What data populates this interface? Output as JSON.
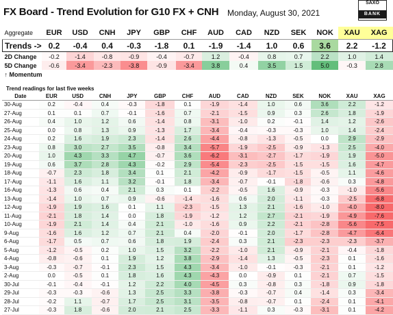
{
  "title": "FX Board - Trend Evolution for G10 FX + CNH",
  "date": "Monday, August 30, 2021",
  "logo": {
    "top": "SAXO",
    "bottom": "BANK"
  },
  "colors": {
    "up_strong": "#63be7b",
    "down_strong": "#f8696b",
    "highlight": "#ffff99",
    "neutral": "#ffffff"
  },
  "currencies": [
    "EUR",
    "USD",
    "CNH",
    "JPY",
    "GBP",
    "CHF",
    "AUD",
    "CAD",
    "NZD",
    "SEK",
    "NOK",
    "XAU",
    "XAG"
  ],
  "summary": {
    "aggregate_label": "Aggregate",
    "trends_label": "Trends ->",
    "trends": [
      "0.2",
      "-0.4",
      "0.4",
      "-0.3",
      "-1.8",
      "0.1",
      "-1.9",
      "-1.4",
      "1.0",
      "0.6",
      "3.6",
      "2.2",
      "-1.2"
    ],
    "change_2d_label": "2D Change",
    "change_2d": [
      "-0.2",
      "-1.4",
      "-0.8",
      "-0.9",
      "-0.4",
      "-0.7",
      "1.2",
      "-0.4",
      "0.8",
      "0.7",
      "2.2",
      "1.0",
      "1.4"
    ],
    "change_5d_label": "5D Change",
    "change_5d": [
      "-0.6",
      "-3.4",
      "-2.3",
      "-3.8",
      "-0.9",
      "-3.4",
      "3.8",
      "0.4",
      "3.5",
      "1.5",
      "5.0",
      "-0.3",
      "2.8"
    ],
    "momentum_label": "↑ Momentum"
  },
  "detail": {
    "section_title": "Trend readings for last five weeks",
    "date_label": "Date",
    "rows": [
      {
        "date": "30-Aug",
        "values": [
          "0.2",
          "-0.4",
          "0.4",
          "-0.3",
          "-1.8",
          "0.1",
          "-1.9",
          "-1.4",
          "1.0",
          "0.6",
          "3.6",
          "2.2",
          "-1.2"
        ]
      },
      {
        "date": "27-Aug",
        "values": [
          "0.1",
          "0.1",
          "0.7",
          "-0.1",
          "-1.6",
          "0.7",
          "-2.1",
          "-1.5",
          "0.9",
          "0.3",
          "2.6",
          "1.8",
          "-1.9"
        ]
      },
      {
        "date": "26-Aug",
        "values": [
          "0.4",
          "1.0",
          "1.2",
          "0.6",
          "-1.4",
          "0.8",
          "-3.1",
          "-1.0",
          "0.2",
          "-0.1",
          "1.4",
          "1.2",
          "-2.6"
        ]
      },
      {
        "date": "25-Aug",
        "values": [
          "0.0",
          "0.8",
          "1.3",
          "0.9",
          "-1.3",
          "1.7",
          "-3.4",
          "-0.4",
          "-0.3",
          "-0.3",
          "1.0",
          "1.4",
          "-2.4"
        ]
      },
      {
        "date": "24-Aug",
        "values": [
          "0.2",
          "1.6",
          "1.9",
          "2.3",
          "-1.4",
          "2.6",
          "-4.4",
          "-0.8",
          "-1.3",
          "-0.5",
          "0.0",
          "2.9",
          "-2.9"
        ]
      },
      {
        "date": "23-Aug",
        "values": [
          "0.8",
          "3.0",
          "2.7",
          "3.5",
          "-0.8",
          "3.4",
          "-5.7",
          "-1.9",
          "-2.5",
          "-0.9",
          "-1.3",
          "2.5",
          "-4.0"
        ]
      },
      {
        "date": "20-Aug",
        "values": [
          "1.0",
          "4.3",
          "3.3",
          "4.7",
          "-0.7",
          "3.6",
          "-6.2",
          "-3.1",
          "-2.7",
          "-1.7",
          "-1.9",
          "1.9",
          "-5.0"
        ]
      },
      {
        "date": "19-Aug",
        "values": [
          "0.6",
          "3.7",
          "2.8",
          "4.3",
          "-0.2",
          "2.9",
          "-5.4",
          "-2.3",
          "-2.5",
          "-1.5",
          "-1.5",
          "1.6",
          "-4.7"
        ]
      },
      {
        "date": "18-Aug",
        "values": [
          "-0.7",
          "2.3",
          "1.8",
          "3.4",
          "0.1",
          "2.1",
          "-4.2",
          "-0.9",
          "-1.7",
          "-1.5",
          "-0.5",
          "1.1",
          "-4.6"
        ]
      },
      {
        "date": "17-Aug",
        "values": [
          "-1.1",
          "1.6",
          "1.1",
          "3.2",
          "-0.1",
          "1.8",
          "-3.4",
          "-0.7",
          "-0.1",
          "-1.8",
          "-0.6",
          "0.3",
          "-4.8"
        ]
      },
      {
        "date": "16-Aug",
        "values": [
          "-1.3",
          "0.6",
          "0.4",
          "2.1",
          "0.3",
          "0.1",
          "-2.2",
          "-0.5",
          "1.6",
          "-0.9",
          "-0.3",
          "-1.0",
          "-5.6"
        ]
      },
      {
        "date": "13-Aug",
        "values": [
          "-1.4",
          "1.0",
          "0.7",
          "0.9",
          "-0.6",
          "-1.4",
          "-1.6",
          "0.6",
          "2.0",
          "-1.1",
          "-0.3",
          "-2.5",
          "-6.8"
        ]
      },
      {
        "date": "12-Aug",
        "values": [
          "-1.9",
          "1.9",
          "1.6",
          "0.1",
          "1.1",
          "-2.3",
          "-1.5",
          "1.3",
          "2.1",
          "-1.6",
          "-1.0",
          "-4.0",
          "-8.0"
        ]
      },
      {
        "date": "11-Aug",
        "values": [
          "-2.1",
          "1.8",
          "1.4",
          "0.0",
          "1.8",
          "-1.9",
          "-1.2",
          "1.2",
          "2.7",
          "-2.1",
          "-1.9",
          "-4.9",
          "-7.6"
        ]
      },
      {
        "date": "10-Aug",
        "values": [
          "-1.9",
          "2.1",
          "1.4",
          "0.4",
          "2.1",
          "-1.0",
          "-1.6",
          "0.9",
          "2.2",
          "-2.1",
          "-2.8",
          "-5.6",
          "-7.5"
        ]
      },
      {
        "date": "9-Aug",
        "values": [
          "-1.6",
          "1.6",
          "1.2",
          "0.7",
          "2.1",
          "0.4",
          "-2.0",
          "-0.1",
          "2.0",
          "-1.7",
          "-2.8",
          "-4.7",
          "-6.4"
        ]
      },
      {
        "date": "6-Aug",
        "values": [
          "-1.7",
          "0.5",
          "0.7",
          "0.6",
          "1.8",
          "1.9",
          "-2.4",
          "0.3",
          "2.1",
          "-2.3",
          "-2.3",
          "-2.3",
          "-3.7"
        ]
      },
      {
        "date": "5-Aug",
        "values": [
          "-1.2",
          "-0.5",
          "0.2",
          "1.0",
          "1.5",
          "3.2",
          "-2.2",
          "-1.0",
          "2.1",
          "-0.9",
          "-2.1",
          "-0.4",
          "-1.8"
        ]
      },
      {
        "date": "4-Aug",
        "values": [
          "-0.8",
          "-0.6",
          "0.1",
          "1.9",
          "1.2",
          "3.8",
          "-2.9",
          "-1.4",
          "1.3",
          "-0.5",
          "-2.3",
          "0.1",
          "-1.6"
        ]
      },
      {
        "date": "3-Aug",
        "values": [
          "-0.3",
          "-0.7",
          "-0.1",
          "2.3",
          "1.5",
          "4.3",
          "-3.4",
          "-1.0",
          "-0.1",
          "-0.3",
          "-2.1",
          "0.1",
          "-1.2"
        ]
      },
      {
        "date": "2-Aug",
        "values": [
          "0.0",
          "-0.5",
          "0.1",
          "1.8",
          "1.6",
          "4.3",
          "-4.3",
          "0.0",
          "-0.9",
          "0.1",
          "-2.1",
          "0.7",
          "-1.5"
        ]
      },
      {
        "date": "30-Jul",
        "values": [
          "-0.1",
          "-0.4",
          "-0.1",
          "1.2",
          "2.2",
          "4.0",
          "-4.5",
          "0.3",
          "-0.8",
          "0.3",
          "-1.8",
          "0.9",
          "-1.8"
        ]
      },
      {
        "date": "29-Jul",
        "values": [
          "-0.3",
          "-0.3",
          "-0.6",
          "1.3",
          "2.5",
          "3.3",
          "-3.8",
          "-0.3",
          "-0.7",
          "0.4",
          "-1.4",
          "0.3",
          "-3.4"
        ]
      },
      {
        "date": "28-Jul",
        "values": [
          "-0.2",
          "1.1",
          "-0.7",
          "1.7",
          "2.5",
          "3.1",
          "-3.5",
          "-0.8",
          "-0.7",
          "0.1",
          "-2.4",
          "0.1",
          "-4.1"
        ]
      },
      {
        "date": "27-Jul",
        "values": [
          "-0.3",
          "1.8",
          "-0.6",
          "2.0",
          "2.1",
          "2.5",
          "-3.3",
          "-1.1",
          "0.3",
          "-0.3",
          "-3.1",
          "0.1",
          "-4.2"
        ]
      }
    ]
  }
}
